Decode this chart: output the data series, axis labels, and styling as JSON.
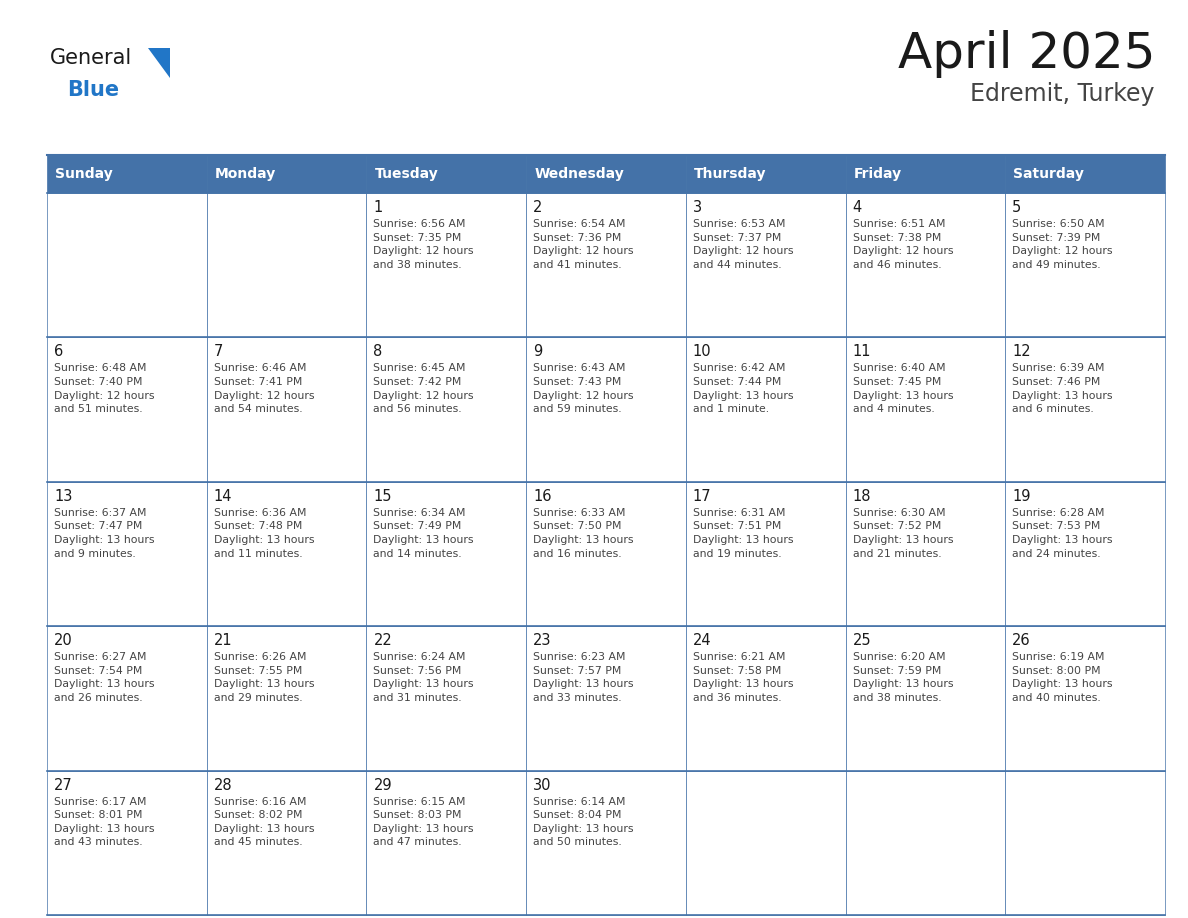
{
  "title": "April 2025",
  "subtitle": "Edremit, Turkey",
  "header_color": "#4472a8",
  "header_text_color": "#ffffff",
  "cell_bg_color": "#ffffff",
  "alt_cell_bg_color": "#f0f0f0",
  "border_color": "#4472a8",
  "row_border_color": "#4472a8",
  "day_names": [
    "Sunday",
    "Monday",
    "Tuesday",
    "Wednesday",
    "Thursday",
    "Friday",
    "Saturday"
  ],
  "title_color": "#1a1a1a",
  "subtitle_color": "#444444",
  "day_number_color": "#1a1a1a",
  "cell_text_color": "#444444",
  "logo_general_color": "#1a1a1a",
  "logo_blue_color": "#2176c7",
  "weeks": [
    [
      {
        "day": null,
        "info": ""
      },
      {
        "day": null,
        "info": ""
      },
      {
        "day": 1,
        "info": "Sunrise: 6:56 AM\nSunset: 7:35 PM\nDaylight: 12 hours\nand 38 minutes."
      },
      {
        "day": 2,
        "info": "Sunrise: 6:54 AM\nSunset: 7:36 PM\nDaylight: 12 hours\nand 41 minutes."
      },
      {
        "day": 3,
        "info": "Sunrise: 6:53 AM\nSunset: 7:37 PM\nDaylight: 12 hours\nand 44 minutes."
      },
      {
        "day": 4,
        "info": "Sunrise: 6:51 AM\nSunset: 7:38 PM\nDaylight: 12 hours\nand 46 minutes."
      },
      {
        "day": 5,
        "info": "Sunrise: 6:50 AM\nSunset: 7:39 PM\nDaylight: 12 hours\nand 49 minutes."
      }
    ],
    [
      {
        "day": 6,
        "info": "Sunrise: 6:48 AM\nSunset: 7:40 PM\nDaylight: 12 hours\nand 51 minutes."
      },
      {
        "day": 7,
        "info": "Sunrise: 6:46 AM\nSunset: 7:41 PM\nDaylight: 12 hours\nand 54 minutes."
      },
      {
        "day": 8,
        "info": "Sunrise: 6:45 AM\nSunset: 7:42 PM\nDaylight: 12 hours\nand 56 minutes."
      },
      {
        "day": 9,
        "info": "Sunrise: 6:43 AM\nSunset: 7:43 PM\nDaylight: 12 hours\nand 59 minutes."
      },
      {
        "day": 10,
        "info": "Sunrise: 6:42 AM\nSunset: 7:44 PM\nDaylight: 13 hours\nand 1 minute."
      },
      {
        "day": 11,
        "info": "Sunrise: 6:40 AM\nSunset: 7:45 PM\nDaylight: 13 hours\nand 4 minutes."
      },
      {
        "day": 12,
        "info": "Sunrise: 6:39 AM\nSunset: 7:46 PM\nDaylight: 13 hours\nand 6 minutes."
      }
    ],
    [
      {
        "day": 13,
        "info": "Sunrise: 6:37 AM\nSunset: 7:47 PM\nDaylight: 13 hours\nand 9 minutes."
      },
      {
        "day": 14,
        "info": "Sunrise: 6:36 AM\nSunset: 7:48 PM\nDaylight: 13 hours\nand 11 minutes."
      },
      {
        "day": 15,
        "info": "Sunrise: 6:34 AM\nSunset: 7:49 PM\nDaylight: 13 hours\nand 14 minutes."
      },
      {
        "day": 16,
        "info": "Sunrise: 6:33 AM\nSunset: 7:50 PM\nDaylight: 13 hours\nand 16 minutes."
      },
      {
        "day": 17,
        "info": "Sunrise: 6:31 AM\nSunset: 7:51 PM\nDaylight: 13 hours\nand 19 minutes."
      },
      {
        "day": 18,
        "info": "Sunrise: 6:30 AM\nSunset: 7:52 PM\nDaylight: 13 hours\nand 21 minutes."
      },
      {
        "day": 19,
        "info": "Sunrise: 6:28 AM\nSunset: 7:53 PM\nDaylight: 13 hours\nand 24 minutes."
      }
    ],
    [
      {
        "day": 20,
        "info": "Sunrise: 6:27 AM\nSunset: 7:54 PM\nDaylight: 13 hours\nand 26 minutes."
      },
      {
        "day": 21,
        "info": "Sunrise: 6:26 AM\nSunset: 7:55 PM\nDaylight: 13 hours\nand 29 minutes."
      },
      {
        "day": 22,
        "info": "Sunrise: 6:24 AM\nSunset: 7:56 PM\nDaylight: 13 hours\nand 31 minutes."
      },
      {
        "day": 23,
        "info": "Sunrise: 6:23 AM\nSunset: 7:57 PM\nDaylight: 13 hours\nand 33 minutes."
      },
      {
        "day": 24,
        "info": "Sunrise: 6:21 AM\nSunset: 7:58 PM\nDaylight: 13 hours\nand 36 minutes."
      },
      {
        "day": 25,
        "info": "Sunrise: 6:20 AM\nSunset: 7:59 PM\nDaylight: 13 hours\nand 38 minutes."
      },
      {
        "day": 26,
        "info": "Sunrise: 6:19 AM\nSunset: 8:00 PM\nDaylight: 13 hours\nand 40 minutes."
      }
    ],
    [
      {
        "day": 27,
        "info": "Sunrise: 6:17 AM\nSunset: 8:01 PM\nDaylight: 13 hours\nand 43 minutes."
      },
      {
        "day": 28,
        "info": "Sunrise: 6:16 AM\nSunset: 8:02 PM\nDaylight: 13 hours\nand 45 minutes."
      },
      {
        "day": 29,
        "info": "Sunrise: 6:15 AM\nSunset: 8:03 PM\nDaylight: 13 hours\nand 47 minutes."
      },
      {
        "day": 30,
        "info": "Sunrise: 6:14 AM\nSunset: 8:04 PM\nDaylight: 13 hours\nand 50 minutes."
      },
      {
        "day": null,
        "info": ""
      },
      {
        "day": null,
        "info": ""
      },
      {
        "day": null,
        "info": ""
      }
    ]
  ]
}
